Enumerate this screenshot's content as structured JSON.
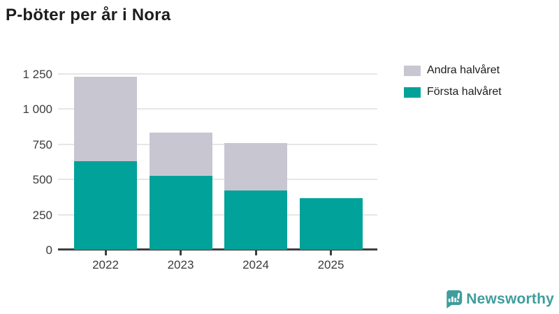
{
  "header": {
    "title": "P-böter per år i Nora"
  },
  "chart_data": {
    "type": "bar",
    "stacked": true,
    "title": "P-böter per år i Nora",
    "xlabel": "",
    "ylabel": "",
    "categories": [
      "2022",
      "2023",
      "2024",
      "2025"
    ],
    "series": [
      {
        "name": "Första halvåret",
        "color": "#00a299",
        "values": [
          630,
          525,
          420,
          365
        ]
      },
      {
        "name": "Andra halvåret",
        "color": "#c8c6d0",
        "values": [
          600,
          310,
          340,
          0
        ]
      }
    ],
    "totals": [
      1230,
      835,
      760,
      365
    ],
    "ylim": [
      0,
      1250
    ],
    "yticks": [
      {
        "value": 0,
        "label": "0"
      },
      {
        "value": 250,
        "label": "250"
      },
      {
        "value": 500,
        "label": "500"
      },
      {
        "value": 750,
        "label": "750"
      },
      {
        "value": 1000,
        "label": "1 000"
      },
      {
        "value": 1250,
        "label": "1 250"
      }
    ],
    "grid": true,
    "legend_position": "top-right"
  },
  "legend": {
    "items": [
      {
        "label": "Andra halvåret",
        "color": "#c8c6d0"
      },
      {
        "label": "Första halvåret",
        "color": "#00a299"
      }
    ]
  },
  "branding": {
    "name": "Newsworthy",
    "color": "#3f9d9d",
    "icon": "newsworthy-chart-bubble-icon"
  },
  "colors": {
    "background": "#ffffff",
    "title_text": "#1d1d1b",
    "axis_line": "#3f3f3f",
    "tick_text": "#3b3b3b",
    "gridline": "#e6e6e6"
  }
}
